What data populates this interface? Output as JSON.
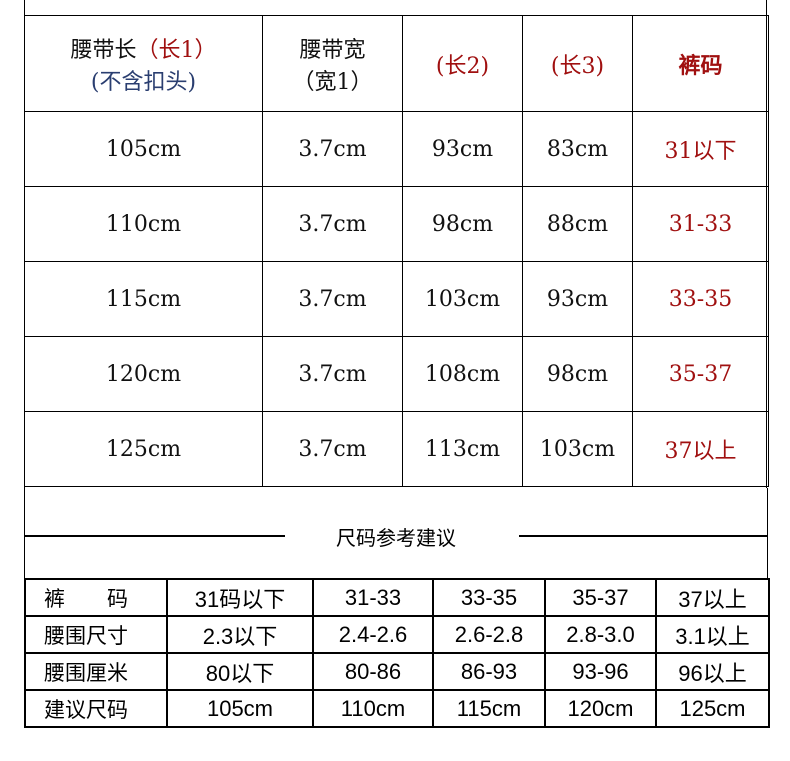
{
  "belt_table": {
    "headers": {
      "length": "腰带长",
      "length_tag": "（长1）",
      "length_note": "(不含扣头)",
      "width": "腰带宽",
      "width_tag": "（宽1）",
      "length2": "(长2)",
      "length3": "(长3)",
      "size": "裤码"
    },
    "rows": [
      [
        "105cm",
        "3.7cm",
        "93cm",
        "83cm",
        "31以下"
      ],
      [
        "110cm",
        "3.7cm",
        "98cm",
        "88cm",
        "31-33"
      ],
      [
        "115cm",
        "3.7cm",
        "103cm",
        "93cm",
        "33-35"
      ],
      [
        "120cm",
        "3.7cm",
        "108cm",
        "98cm",
        "35-37"
      ],
      [
        "125cm",
        "3.7cm",
        "113cm",
        "103cm",
        "37以上"
      ]
    ]
  },
  "section_title": "尺码参考建议",
  "reference_table": {
    "rows": [
      {
        "label": "裤　　码",
        "values": [
          "31码以下",
          "31-33",
          "33-35",
          "35-37",
          "37以上"
        ]
      },
      {
        "label": "腰围尺寸",
        "values": [
          "2.3以下",
          "2.4-2.6",
          "2.6-2.8",
          "2.8-3.0",
          "3.1以上"
        ]
      },
      {
        "label": "腰围厘米",
        "values": [
          "80以下",
          "80-86",
          "86-93",
          "93-96",
          "96以上"
        ]
      },
      {
        "label": "建议尺码",
        "values": [
          "105cm",
          "110cm",
          "115cm",
          "120cm",
          "125cm"
        ]
      }
    ]
  },
  "colors": {
    "accent_red": "#a01010",
    "note_blue": "#2a3e70"
  }
}
